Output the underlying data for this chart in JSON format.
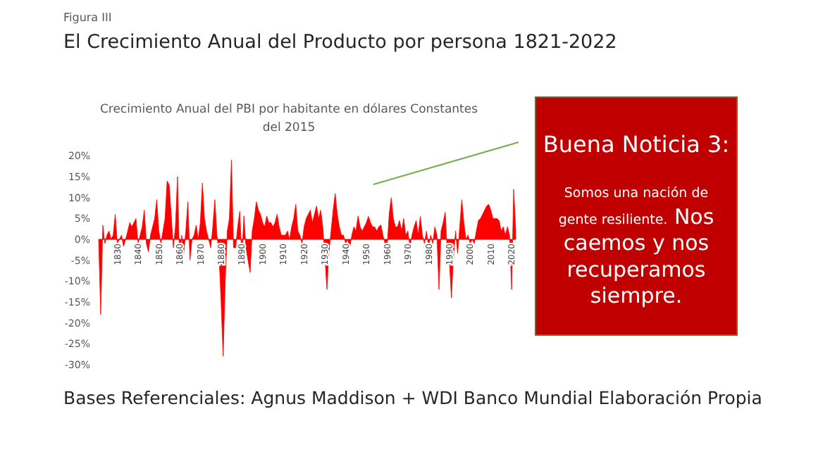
{
  "chart_data": {
    "type": "area",
    "title": "El Crecimiento Anual del Producto por persona 1821-2022",
    "subtitle": "Crecimiento Anual del PBI por habitante en dólares Constantes del 2015",
    "annotations": [
      "Figura III",
      "Buena Noticia 3:",
      "Somos una nación de gente resiliente.",
      "Nos caemos y nos recuperamos siempre.",
      "Bases Referenciales: Agnus Maddison + WDI Banco Mundial Elaboración Propia"
    ],
    "xlim": [
      1821,
      2022
    ],
    "ylim": [
      -30,
      20
    ],
    "yticks": [
      {
        "value": 20,
        "label": "20%"
      },
      {
        "value": 15,
        "label": "15%"
      },
      {
        "value": 10,
        "label": "10%"
      },
      {
        "value": 5,
        "label": "5%"
      },
      {
        "value": 0,
        "label": "0%"
      },
      {
        "value": -5,
        "label": "-5%"
      },
      {
        "value": -10,
        "label": "-10%"
      },
      {
        "value": -15,
        "label": "-15%"
      },
      {
        "value": -20,
        "label": "-20%"
      },
      {
        "value": -25,
        "label": "-25%"
      },
      {
        "value": -30,
        "label": "-30%"
      }
    ],
    "xticks": [
      1830,
      1840,
      1850,
      1860,
      1870,
      1880,
      1890,
      1900,
      1910,
      1920,
      1930,
      1940,
      1950,
      1960,
      1970,
      1980,
      1990,
      2000,
      2010,
      2020
    ],
    "grid": false,
    "series": [
      {
        "color": "#ff0000",
        "x": [
          1821,
          1822,
          1823,
          1824,
          1825,
          1826,
          1827,
          1828,
          1829,
          1830,
          1831,
          1832,
          1833,
          1834,
          1835,
          1836,
          1837,
          1838,
          1839,
          1840,
          1841,
          1842,
          1843,
          1844,
          1845,
          1846,
          1847,
          1848,
          1849,
          1850,
          1851,
          1852,
          1853,
          1854,
          1855,
          1856,
          1857,
          1858,
          1859,
          1860,
          1861,
          1862,
          1863,
          1864,
          1865,
          1866,
          1867,
          1868,
          1869,
          1870,
          1871,
          1872,
          1873,
          1874,
          1875,
          1876,
          1877,
          1878,
          1879,
          1880,
          1881,
          1882,
          1883,
          1884,
          1885,
          1886,
          1887,
          1888,
          1889,
          1890,
          1891,
          1892,
          1893,
          1894,
          1895,
          1896,
          1897,
          1898,
          1899,
          1900,
          1901,
          1902,
          1903,
          1904,
          1905,
          1906,
          1907,
          1908,
          1909,
          1910,
          1911,
          1912,
          1913,
          1914,
          1915,
          1916,
          1917,
          1918,
          1919,
          1920,
          1921,
          1922,
          1923,
          1924,
          1925,
          1926,
          1927,
          1928,
          1929,
          1930,
          1931,
          1932,
          1933,
          1934,
          1935,
          1936,
          1937,
          1938,
          1939,
          1940,
          1941,
          1942,
          1943,
          1944,
          1945,
          1946,
          1947,
          1948,
          1949,
          1950,
          1951,
          1952,
          1953,
          1954,
          1955,
          1956,
          1957,
          1958,
          1959,
          1960,
          1961,
          1962,
          1963,
          1964,
          1965,
          1966,
          1967,
          1968,
          1969,
          1970,
          1971,
          1972,
          1973,
          1974,
          1975,
          1976,
          1977,
          1978,
          1979,
          1980,
          1981,
          1982,
          1983,
          1984,
          1985,
          1986,
          1987,
          1988,
          1989,
          1990,
          1991,
          1992,
          1993,
          1994,
          1995,
          1996,
          1997,
          1998,
          1999,
          2000,
          2001,
          2002,
          2003,
          2004,
          2005,
          2006,
          2007,
          2008,
          2009,
          2010,
          2011,
          2012,
          2013,
          2014,
          2015,
          2016,
          2017,
          2018,
          2019,
          2020,
          2021,
          2022
        ],
        "values": [
          0,
          -18,
          3.4,
          -1,
          1,
          2,
          0,
          1,
          6,
          -1,
          0,
          1,
          -1.7,
          0,
          2,
          4,
          3,
          4,
          5,
          -1,
          1,
          3,
          7,
          -1,
          -3,
          1,
          3,
          5,
          9.5,
          2,
          -1,
          2,
          5,
          14,
          13,
          5.6,
          -2,
          3,
          15,
          -5.6,
          1,
          -3.4,
          2,
          9,
          -5,
          0,
          1,
          3.4,
          0,
          4,
          13.5,
          5,
          2,
          0,
          -2,
          3,
          9.5,
          1,
          -3.4,
          -15,
          -28,
          -10,
          2,
          5,
          19,
          -2,
          -2,
          3,
          6.7,
          -4.5,
          5.6,
          -2,
          -5,
          -7.9,
          2,
          5,
          9,
          7,
          6,
          4,
          3,
          5.6,
          4,
          4,
          3,
          4,
          6,
          3,
          1,
          1,
          1,
          2,
          0,
          3,
          5,
          8.4,
          2,
          1,
          -1,
          3,
          5,
          6,
          7,
          4,
          6,
          8,
          5,
          7,
          3,
          -4,
          -12,
          -3,
          2,
          7,
          11,
          6,
          3,
          1,
          1,
          -1,
          0,
          -2,
          1,
          3,
          2,
          5.6,
          3,
          2,
          3,
          4,
          5.5,
          4,
          3,
          3,
          2,
          3,
          3.5,
          1,
          -1,
          -2,
          6,
          10,
          5,
          3,
          3,
          4.5,
          2,
          5,
          1,
          2,
          -1.7,
          1,
          3,
          4.5,
          1,
          5.5,
          1,
          -1,
          2,
          -2,
          1,
          -1,
          3,
          1,
          -12,
          2,
          4,
          6.5,
          -3,
          -5,
          -14,
          -4,
          2,
          -3.4,
          3,
          9.5,
          4,
          0,
          1,
          -1,
          0,
          -1,
          2,
          4.5,
          5,
          6,
          7,
          8,
          8.4,
          7,
          5,
          5,
          5,
          4.5,
          2,
          3,
          1,
          3,
          1,
          -12,
          12,
          2
        ]
      }
    ]
  }
}
